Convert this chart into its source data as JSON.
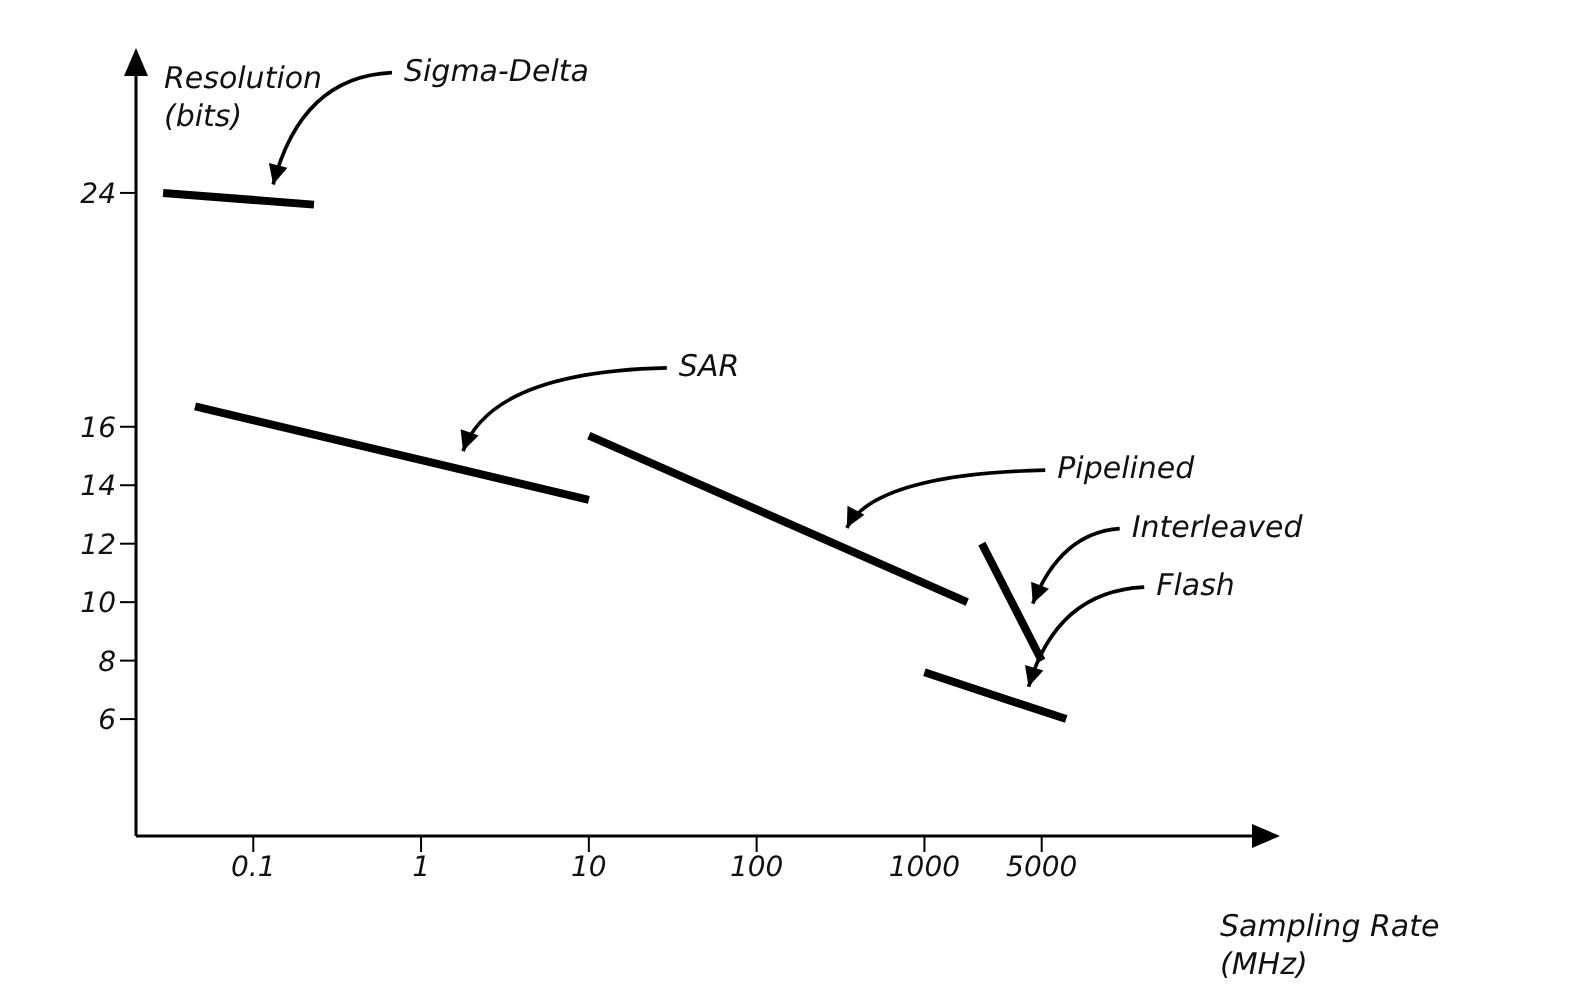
{
  "chart_data": {
    "type": "line",
    "xlabel": "Sampling Rate (MHz)",
    "ylabel": "Resolution (bits)",
    "log": "x",
    "xlim": [
      0.02,
      100000
    ],
    "ylim": [
      2,
      28
    ],
    "xticks": [
      0.1,
      1,
      10,
      100,
      1000,
      5000
    ],
    "yticks": [
      6,
      8,
      10,
      12,
      14,
      16,
      24
    ],
    "grid": false,
    "marker": "none",
    "line_style": "solid",
    "series": [
      {
        "name": "Sigma-Delta",
        "color": "#000000",
        "x": [
          0.029,
          0.23
        ],
        "values": [
          24,
          23.6
        ]
      },
      {
        "name": "SAR",
        "color": "#000000",
        "x": [
          0.045,
          10
        ],
        "values": [
          16.7,
          13.5
        ]
      },
      {
        "name": "Pipelined",
        "color": "#000000",
        "x": [
          10,
          1800
        ],
        "values": [
          15.7,
          10
        ]
      },
      {
        "name": "Interleaved",
        "color": "#000000",
        "x": [
          2200,
          5000
        ],
        "values": [
          12,
          8
        ]
      },
      {
        "name": "Flash",
        "color": "#000000",
        "x": [
          1000,
          7000
        ],
        "values": [
          7.6,
          6
        ]
      }
    ]
  }
}
